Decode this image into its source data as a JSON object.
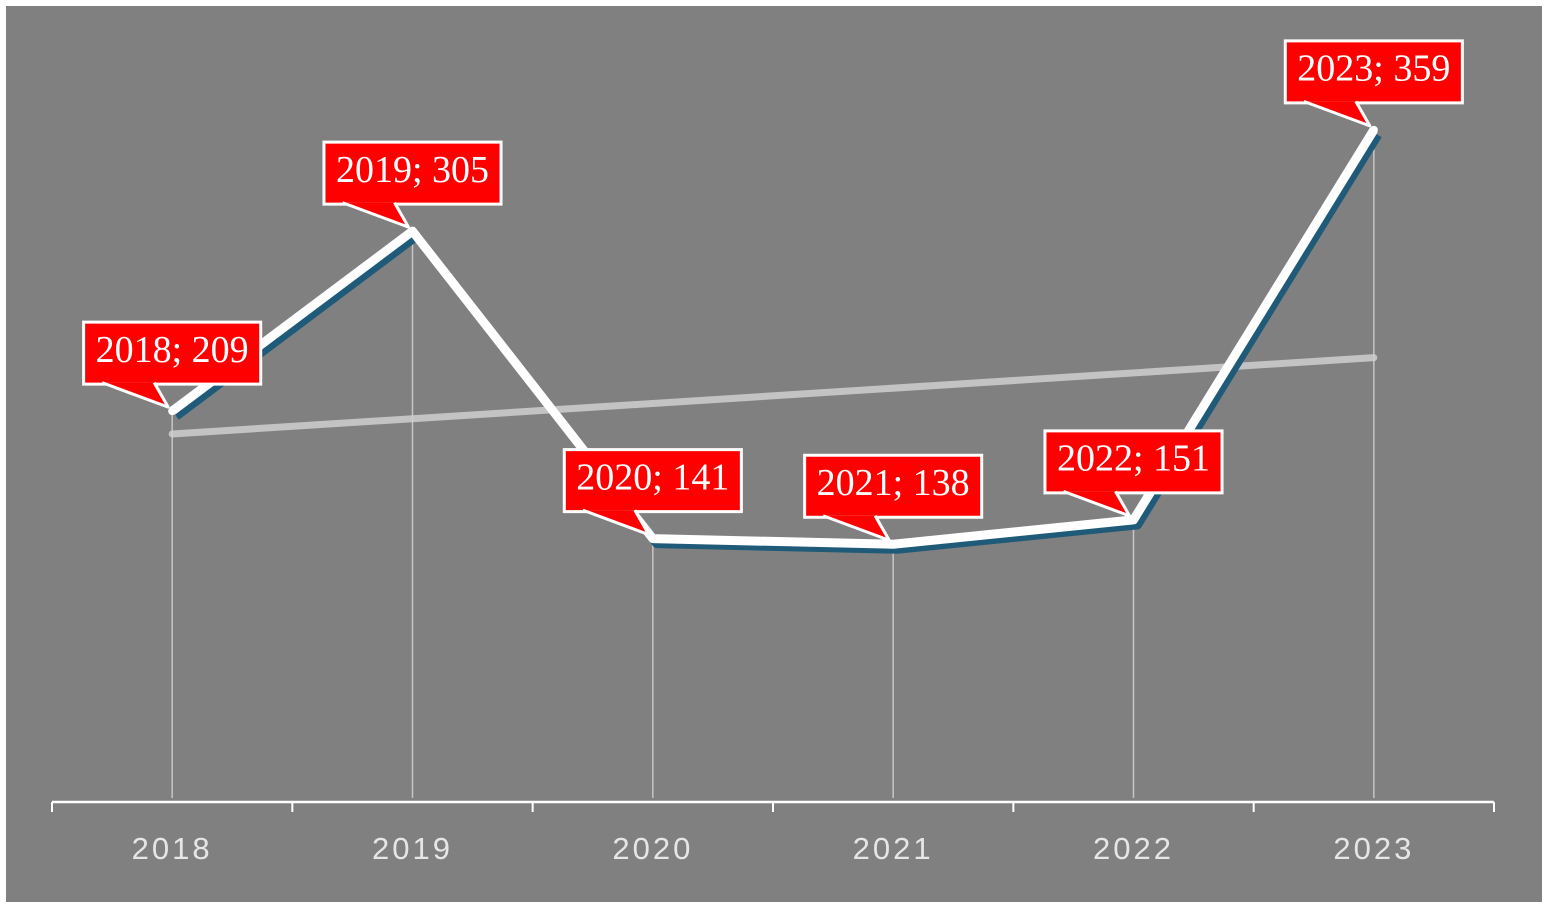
{
  "chart_data": {
    "type": "line",
    "categories": [
      "2018",
      "2019",
      "2020",
      "2021",
      "2022",
      "2023"
    ],
    "values": [
      209,
      305,
      141,
      138,
      151,
      359
    ],
    "value_labels": [
      "2018; 209",
      "2019; 305",
      "2020; 141",
      "2021; 138",
      "2022; 151",
      "2023; 359"
    ],
    "color": "#ffffff",
    "label_color": "#ff0000",
    "trendline": true,
    "ylim": [
      0,
      400
    ]
  }
}
